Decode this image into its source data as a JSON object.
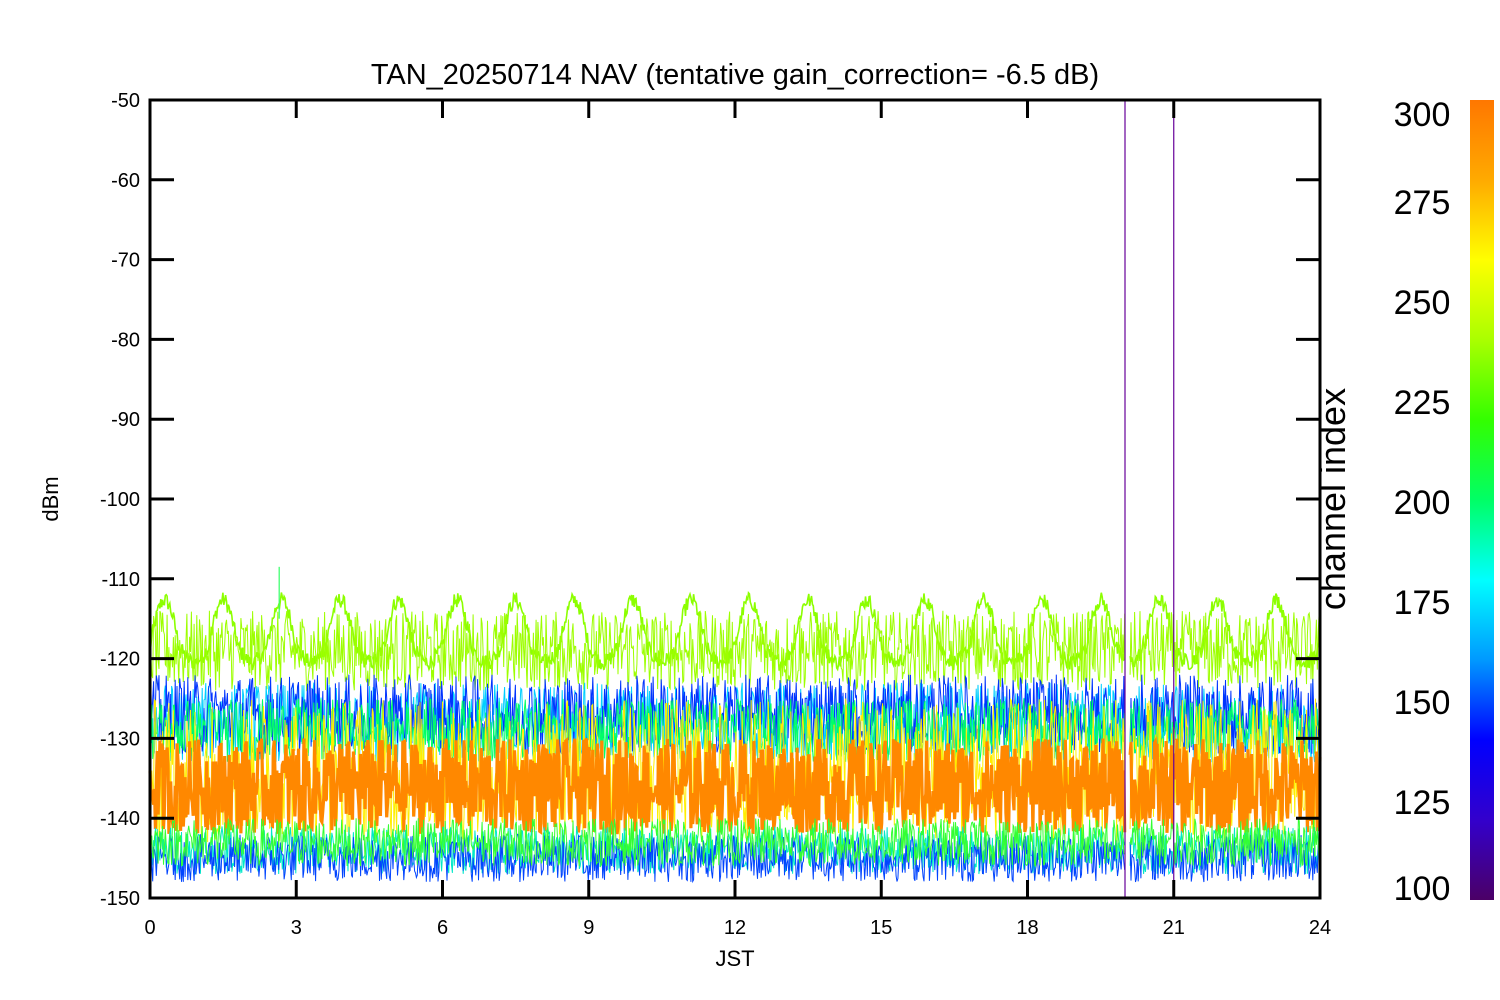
{
  "chart_data": {
    "type": "line",
    "title": "TAN_20250714 NAV (tentative gain_correction= -6.5 dB)",
    "xlabel": "JST",
    "ylabel": "dBm",
    "xlim": [
      0,
      24
    ],
    "ylim": [
      -150,
      -50
    ],
    "xticks": [
      0,
      3,
      6,
      9,
      12,
      15,
      18,
      21,
      24
    ],
    "yticks": [
      -50,
      -60,
      -70,
      -80,
      -90,
      -100,
      -110,
      -120,
      -130,
      -140,
      -150
    ],
    "grid": false,
    "data_gap": [
      20.0,
      20.1
    ],
    "colorbar": {
      "label": "channel index",
      "range": [
        100,
        300
      ],
      "ticks": [
        300,
        275,
        250,
        225,
        200,
        175,
        150,
        125,
        100
      ],
      "colormap": [
        "#4b0066",
        "#3300cc",
        "#0000ff",
        "#0099ff",
        "#00ffff",
        "#00ff66",
        "#33ff00",
        "#aaff00",
        "#ffff00",
        "#ffaa00",
        "#ff7700"
      ]
    },
    "series": [
      {
        "channel": 252,
        "color": "#8cff00",
        "band": "peak",
        "base": -118.5,
        "amplitude": 6.5,
        "period_hours": 1.2,
        "noise": 2
      },
      {
        "channel": 252,
        "color": "#9dff00",
        "band": "main",
        "center": -119,
        "spread": 5
      },
      {
        "channel": 180,
        "color": "#00cfff",
        "band": "upper",
        "center": -128,
        "spread": 5
      },
      {
        "channel": 140,
        "color": "#0033ff",
        "band": "upper",
        "center": -127,
        "spread": 5
      },
      {
        "channel": 215,
        "color": "#00ff66",
        "band": "upper",
        "center": -129,
        "spread": 4
      },
      {
        "channel": 265,
        "color": "#ffee00",
        "band": "wide",
        "center": -134,
        "spread": 9
      },
      {
        "channel": 285,
        "color": "#ff8800",
        "band": "core",
        "center": -136,
        "spread": 6
      },
      {
        "channel": 175,
        "color": "#00e8c8",
        "band": "lower",
        "center": -144,
        "spread": 3
      },
      {
        "channel": 150,
        "color": "#0044ff",
        "band": "lower",
        "center": -145,
        "spread": 3
      },
      {
        "channel": 225,
        "color": "#33ff33",
        "band": "lower",
        "center": -143,
        "spread": 3
      }
    ],
    "spikes": [
      {
        "x": 20.0,
        "y_from": -150,
        "y_to": -50,
        "color": "#660099"
      },
      {
        "x": 21.0,
        "y_from": -150,
        "y_to": -52,
        "color": "#660099"
      },
      {
        "x": 2.65,
        "y_from": -115,
        "y_to": -108.5,
        "color": "#33ff66"
      }
    ]
  }
}
